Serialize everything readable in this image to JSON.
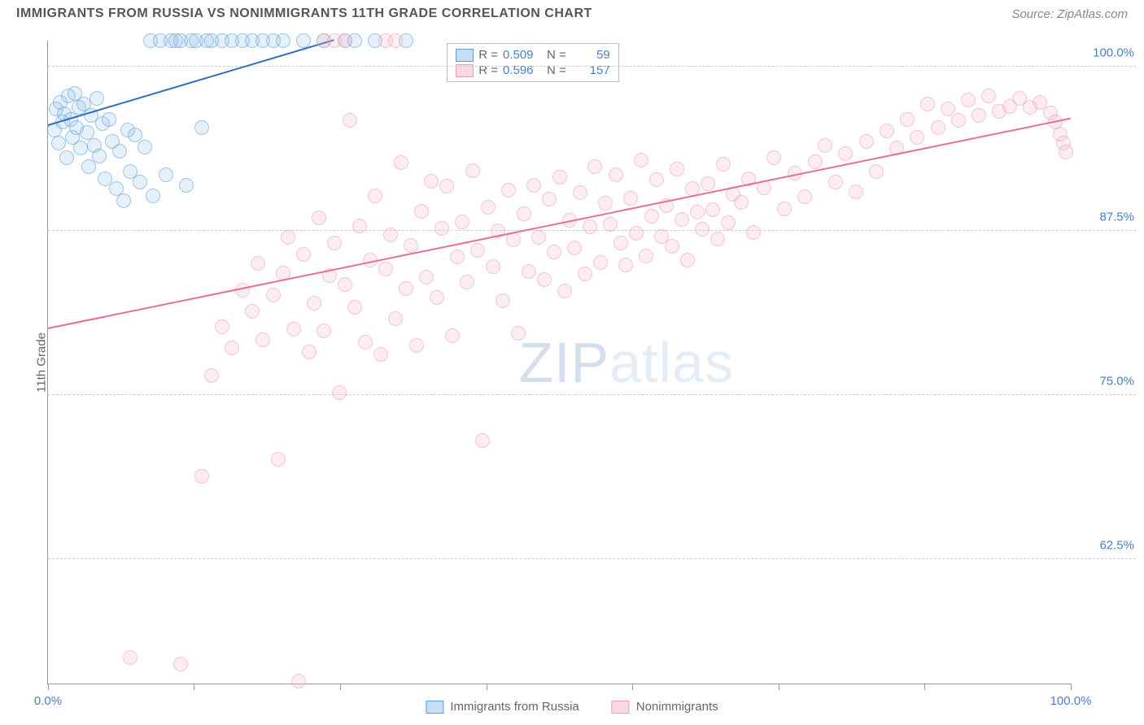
{
  "title": "IMMIGRANTS FROM RUSSIA VS NONIMMIGRANTS 11TH GRADE CORRELATION CHART",
  "source": "Source: ZipAtlas.com",
  "y_axis_label": "11th Grade",
  "watermark": {
    "part1": "ZIP",
    "part2": "atlas"
  },
  "chart": {
    "type": "scatter",
    "xlim": [
      0,
      100
    ],
    "ylim": [
      53,
      102
    ],
    "x_ticks": [
      0,
      14.28,
      28.57,
      42.85,
      57.14,
      71.42,
      85.71,
      100
    ],
    "x_tick_labels": {
      "0": "0.0%",
      "100": "100.0%"
    },
    "y_ticks": [
      62.5,
      75.0,
      87.5,
      100.0
    ],
    "y_tick_labels": [
      "62.5%",
      "75.0%",
      "87.5%",
      "100.0%"
    ],
    "background_color": "#ffffff",
    "grid_color": "#cccccc",
    "axis_color": "#999999",
    "tick_label_color": "#4a7ec9",
    "marker_radius": 9,
    "marker_opacity": 0.6,
    "series": [
      {
        "name": "Immigrants from Russia",
        "color_fill": "rgba(130,180,230,0.35)",
        "color_stroke": "#5f9fd8",
        "trend_color": "#2f6fc0",
        "R": "0.509",
        "N": "59",
        "trend": {
          "x1": 0,
          "y1": 95.5,
          "x2": 28,
          "y2": 102
        },
        "points": [
          [
            0.6,
            95.2
          ],
          [
            0.8,
            96.8
          ],
          [
            1.0,
            94.2
          ],
          [
            1.2,
            97.3
          ],
          [
            1.4,
            95.8
          ],
          [
            1.6,
            96.4
          ],
          [
            1.8,
            93.1
          ],
          [
            2.0,
            97.8
          ],
          [
            2.2,
            96.0
          ],
          [
            2.4,
            94.6
          ],
          [
            2.6,
            98.0
          ],
          [
            2.8,
            95.4
          ],
          [
            3.0,
            96.9
          ],
          [
            3.2,
            93.8
          ],
          [
            3.5,
            97.2
          ],
          [
            3.8,
            95.0
          ],
          [
            4.0,
            92.4
          ],
          [
            4.2,
            96.3
          ],
          [
            4.5,
            94.0
          ],
          [
            4.8,
            97.6
          ],
          [
            5.0,
            93.2
          ],
          [
            5.3,
            95.7
          ],
          [
            5.6,
            91.5
          ],
          [
            6.0,
            96.0
          ],
          [
            6.3,
            94.3
          ],
          [
            6.7,
            90.7
          ],
          [
            7.0,
            93.6
          ],
          [
            7.4,
            89.8
          ],
          [
            7.8,
            95.2
          ],
          [
            8.0,
            92.0
          ],
          [
            8.5,
            94.8
          ],
          [
            9.0,
            91.2
          ],
          [
            9.5,
            93.9
          ],
          [
            10.0,
            102
          ],
          [
            10.3,
            90.2
          ],
          [
            11.0,
            102
          ],
          [
            11.5,
            91.8
          ],
          [
            12.0,
            102
          ],
          [
            12.5,
            102
          ],
          [
            13.0,
            102
          ],
          [
            13.5,
            91.0
          ],
          [
            14.0,
            102
          ],
          [
            14.5,
            102
          ],
          [
            15.0,
            95.4
          ],
          [
            15.5,
            102
          ],
          [
            16.0,
            102
          ],
          [
            17.0,
            102
          ],
          [
            18.0,
            102
          ],
          [
            19.0,
            102
          ],
          [
            20.0,
            102
          ],
          [
            21.0,
            102
          ],
          [
            22.0,
            102
          ],
          [
            23.0,
            102
          ],
          [
            25.0,
            102
          ],
          [
            27.0,
            102
          ],
          [
            29.0,
            102
          ],
          [
            30.0,
            102
          ],
          [
            32.0,
            102
          ],
          [
            35.0,
            102
          ]
        ]
      },
      {
        "name": "Nonimmigrants",
        "color_fill": "rgba(245,170,190,0.35)",
        "color_stroke": "#ef9eb3",
        "trend_color": "#e86f93",
        "R": "0.596",
        "N": "157",
        "trend": {
          "x1": 0,
          "y1": 80.0,
          "x2": 100,
          "y2": 96.0
        },
        "points": [
          [
            8,
            55.0
          ],
          [
            13,
            54.5
          ],
          [
            15,
            68.8
          ],
          [
            16,
            76.5
          ],
          [
            17,
            80.2
          ],
          [
            18,
            78.6
          ],
          [
            19,
            83.0
          ],
          [
            20,
            81.4
          ],
          [
            20.5,
            85.0
          ],
          [
            21,
            79.2
          ],
          [
            22,
            82.6
          ],
          [
            22.5,
            70.1
          ],
          [
            23,
            84.3
          ],
          [
            23.5,
            87.0
          ],
          [
            24,
            80.0
          ],
          [
            24.5,
            53.2
          ],
          [
            25,
            85.7
          ],
          [
            25.5,
            78.3
          ],
          [
            26,
            82.0
          ],
          [
            26.5,
            88.5
          ],
          [
            27,
            79.9
          ],
          [
            27.5,
            84.1
          ],
          [
            28,
            86.6
          ],
          [
            28.5,
            75.2
          ],
          [
            29,
            83.4
          ],
          [
            29.5,
            95.9
          ],
          [
            30,
            81.7
          ],
          [
            30.5,
            87.9
          ],
          [
            31,
            79.0
          ],
          [
            31.5,
            85.3
          ],
          [
            32,
            90.2
          ],
          [
            32.5,
            78.1
          ],
          [
            33,
            84.6
          ],
          [
            33.5,
            87.2
          ],
          [
            34,
            80.8
          ],
          [
            34.5,
            92.7
          ],
          [
            35,
            83.1
          ],
          [
            35.5,
            86.4
          ],
          [
            36,
            78.8
          ],
          [
            36.5,
            89.0
          ],
          [
            37,
            84.0
          ],
          [
            37.5,
            91.3
          ],
          [
            38,
            82.4
          ],
          [
            38.5,
            87.7
          ],
          [
            39,
            90.9
          ],
          [
            39.5,
            79.5
          ],
          [
            40,
            85.5
          ],
          [
            40.5,
            88.2
          ],
          [
            41,
            83.6
          ],
          [
            41.5,
            92.1
          ],
          [
            42,
            86.0
          ],
          [
            42.5,
            71.5
          ],
          [
            43,
            89.3
          ],
          [
            43.5,
            84.8
          ],
          [
            44,
            87.5
          ],
          [
            44.5,
            82.2
          ],
          [
            45,
            90.6
          ],
          [
            45.5,
            86.8
          ],
          [
            46,
            79.7
          ],
          [
            46.5,
            88.8
          ],
          [
            47,
            84.4
          ],
          [
            47.5,
            91.0
          ],
          [
            48,
            87.0
          ],
          [
            48.5,
            83.8
          ],
          [
            49,
            89.9
          ],
          [
            49.5,
            85.9
          ],
          [
            50,
            91.6
          ],
          [
            50.5,
            82.9
          ],
          [
            51,
            88.3
          ],
          [
            51.5,
            86.2
          ],
          [
            52,
            90.4
          ],
          [
            52.5,
            84.2
          ],
          [
            53,
            87.8
          ],
          [
            53.5,
            92.4
          ],
          [
            54,
            85.1
          ],
          [
            54.5,
            89.6
          ],
          [
            55,
            88.0
          ],
          [
            55.5,
            91.8
          ],
          [
            56,
            86.6
          ],
          [
            56.5,
            84.9
          ],
          [
            57,
            90.0
          ],
          [
            57.5,
            87.3
          ],
          [
            58,
            92.9
          ],
          [
            58.5,
            85.6
          ],
          [
            59,
            88.6
          ],
          [
            59.5,
            91.4
          ],
          [
            60,
            87.1
          ],
          [
            60.5,
            89.4
          ],
          [
            61,
            86.3
          ],
          [
            61.5,
            92.2
          ],
          [
            62,
            88.4
          ],
          [
            62.5,
            85.3
          ],
          [
            63,
            90.7
          ],
          [
            63.5,
            88.9
          ],
          [
            64,
            87.6
          ],
          [
            64.5,
            91.1
          ],
          [
            65,
            89.1
          ],
          [
            65.5,
            86.9
          ],
          [
            66,
            92.6
          ],
          [
            66.5,
            88.1
          ],
          [
            67,
            90.3
          ],
          [
            67.8,
            89.7
          ],
          [
            68.5,
            91.5
          ],
          [
            69,
            87.4
          ],
          [
            70,
            90.8
          ],
          [
            71,
            93.1
          ],
          [
            72,
            89.2
          ],
          [
            73,
            91.9
          ],
          [
            74,
            90.1
          ],
          [
            75,
            92.8
          ],
          [
            76,
            94.0
          ],
          [
            77,
            91.2
          ],
          [
            78,
            93.4
          ],
          [
            79,
            90.5
          ],
          [
            80,
            94.3
          ],
          [
            81,
            92.0
          ],
          [
            82,
            95.1
          ],
          [
            83,
            93.8
          ],
          [
            84,
            96.0
          ],
          [
            85,
            94.6
          ],
          [
            86,
            97.2
          ],
          [
            87,
            95.4
          ],
          [
            88,
            96.8
          ],
          [
            89,
            95.9
          ],
          [
            90,
            97.5
          ],
          [
            91,
            96.3
          ],
          [
            92,
            97.8
          ],
          [
            93,
            96.6
          ],
          [
            94,
            97.0
          ],
          [
            95,
            97.6
          ],
          [
            96,
            96.9
          ],
          [
            97,
            97.3
          ],
          [
            98,
            96.5
          ],
          [
            98.5,
            95.8
          ],
          [
            99,
            94.9
          ],
          [
            99.3,
            94.2
          ],
          [
            99.5,
            93.5
          ],
          [
            27,
            102
          ],
          [
            28,
            102
          ],
          [
            29,
            102
          ],
          [
            33,
            102
          ],
          [
            34,
            102
          ]
        ]
      }
    ],
    "legend_stats_label_R": "R =",
    "legend_stats_label_N": "N =",
    "bottom_legend": [
      {
        "swatch": "blue",
        "label": "Immigrants from Russia"
      },
      {
        "swatch": "pink",
        "label": "Nonimmigrants"
      }
    ]
  }
}
